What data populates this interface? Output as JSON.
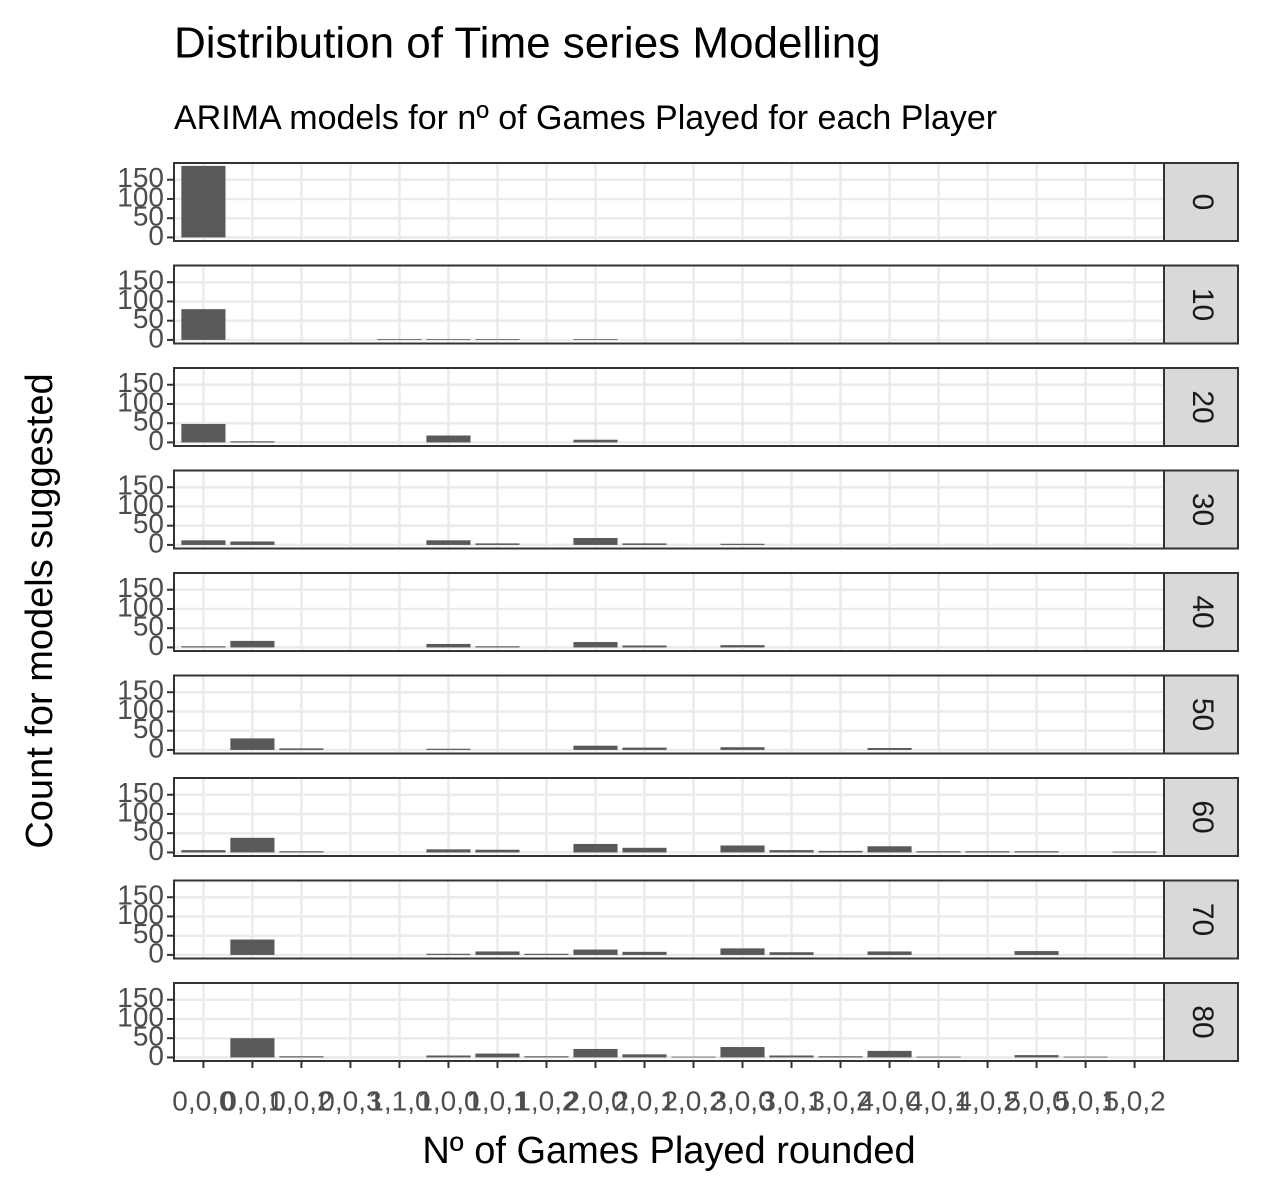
{
  "chart_data": {
    "type": "bar",
    "title": "Distribution of Time series Modelling",
    "subtitle": "ARIMA models for nº of Games Played for each Player",
    "x_label": "Nº of Games Played rounded",
    "y_label": "Count for models suggested",
    "categories": [
      "0,0,0",
      "0,0,1",
      "0,0,2",
      "0,0,3",
      "1,1,0",
      "1,0,0",
      "1,0,1",
      "1,0,2",
      "2,0,0",
      "2,0,1",
      "2,0,2",
      "3,0,0",
      "3,0,1",
      "3,0,2",
      "4,0,0",
      "4,0,1",
      "4,0,2",
      "5,0,0",
      "5,0,1",
      "5,0,2"
    ],
    "color": "#595959",
    "ylim": [
      -9.3,
      193.5
    ],
    "yticks": [
      0,
      50,
      100,
      150
    ],
    "grid": true,
    "facets": [
      {
        "label": "0",
        "values": [
          186,
          0,
          0,
          0,
          0,
          0,
          0,
          0,
          0,
          0,
          0,
          0,
          0,
          0,
          0,
          0,
          0,
          0,
          0,
          0
        ]
      },
      {
        "label": "10",
        "values": [
          80,
          0,
          0,
          0,
          2,
          2,
          2,
          0,
          2,
          0,
          0,
          0,
          0,
          0,
          0,
          0,
          0,
          0,
          0,
          0
        ]
      },
      {
        "label": "20",
        "values": [
          48,
          3,
          0,
          0,
          0,
          18,
          0,
          0,
          7,
          0,
          0,
          0,
          0,
          0,
          0,
          0,
          0,
          0,
          0,
          0
        ]
      },
      {
        "label": "30",
        "values": [
          12,
          9,
          0,
          0,
          0,
          12,
          4,
          0,
          18,
          4,
          0,
          3,
          0,
          0,
          0,
          0,
          0,
          0,
          0,
          0
        ]
      },
      {
        "label": "40",
        "values": [
          3,
          17,
          0,
          0,
          0,
          9,
          3,
          0,
          14,
          5,
          0,
          6,
          0,
          0,
          0,
          0,
          0,
          0,
          0,
          0
        ]
      },
      {
        "label": "50",
        "values": [
          0,
          30,
          4,
          0,
          0,
          3,
          0,
          0,
          11,
          6,
          0,
          7,
          0,
          0,
          5,
          0,
          0,
          0,
          0,
          0
        ]
      },
      {
        "label": "60",
        "values": [
          6,
          38,
          3,
          0,
          0,
          8,
          7,
          0,
          22,
          12,
          0,
          18,
          6,
          4,
          16,
          3,
          3,
          3,
          0,
          2
        ]
      },
      {
        "label": "70",
        "values": [
          0,
          40,
          0,
          0,
          0,
          3,
          9,
          3,
          14,
          8,
          0,
          17,
          7,
          0,
          9,
          0,
          0,
          10,
          0,
          0
        ]
      },
      {
        "label": "80",
        "values": [
          0,
          50,
          3,
          0,
          0,
          5,
          10,
          3,
          22,
          8,
          2,
          27,
          5,
          3,
          17,
          2,
          0,
          6,
          2,
          0
        ]
      }
    ]
  }
}
